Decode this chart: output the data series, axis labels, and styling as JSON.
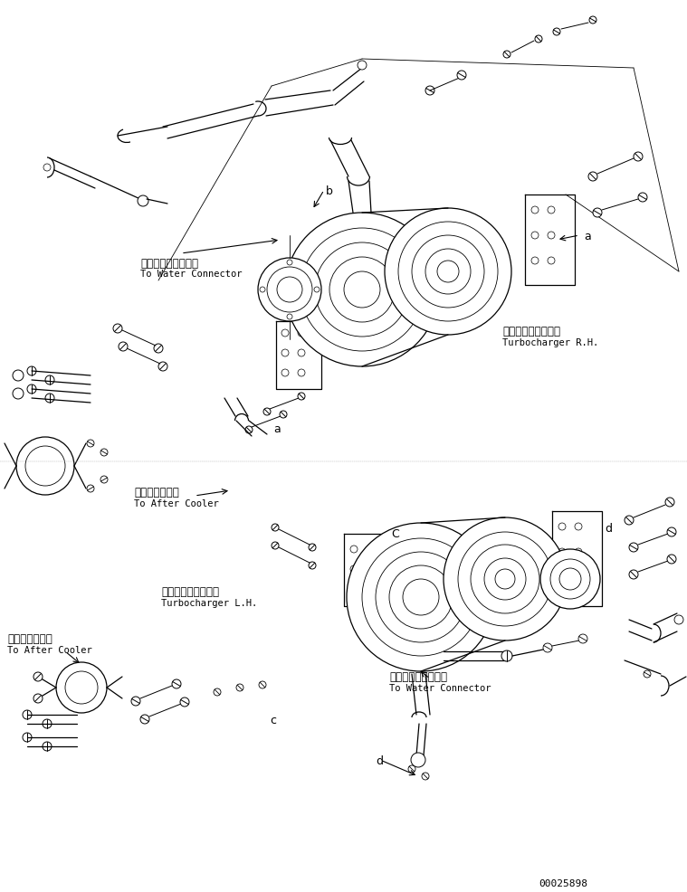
{
  "figure_width": 7.59,
  "figure_height": 9.86,
  "dpi": 100,
  "background_color": "#ffffff",
  "part_number": "00025898",
  "labels": {
    "water_connector_upper_jp": "ウォータコネクタへ",
    "water_connector_upper_en": "To Water Connector",
    "turbocharger_rh_jp": "ターボチャージャ右",
    "turbocharger_rh_en": "Turbocharger R.H.",
    "after_cooler_mid_jp": "アフタクーラへ",
    "after_cooler_mid_en": "To After Cooler",
    "turbocharger_lh_jp": "ターボチャージャ左",
    "turbocharger_lh_en": "Turbocharger L.H.",
    "after_cooler_lower_jp": "アフタクーラへ",
    "after_cooler_lower_en": "To After Cooler",
    "water_connector_lower_jp": "ウォータコネクタへ",
    "water_connector_lower_en": "To Water Connector"
  },
  "line_color": "#000000",
  "text_color": "#000000",
  "font_size_jp": 8.5,
  "font_size_en": 7.5,
  "font_size_callout": 9,
  "font_size_partnumber": 8
}
